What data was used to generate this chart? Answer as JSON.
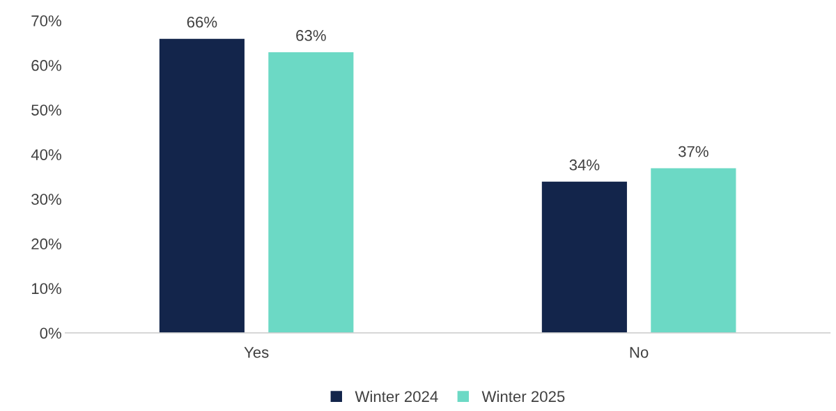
{
  "chart_data": {
    "type": "bar",
    "categories": [
      "Yes",
      "No"
    ],
    "series": [
      {
        "name": "Winter 2024",
        "color": "#13254b",
        "values": [
          66,
          34
        ],
        "value_labels": [
          "66%",
          "34%"
        ]
      },
      {
        "name": "Winter 2025",
        "color": "#6cd9c5",
        "values": [
          63,
          37
        ],
        "value_labels": [
          "63%",
          "37%"
        ]
      }
    ],
    "ylim": [
      0,
      70
    ],
    "yticks": [
      {
        "value": 0,
        "label": "0%"
      },
      {
        "value": 10,
        "label": "10%"
      },
      {
        "value": 20,
        "label": "20%"
      },
      {
        "value": 30,
        "label": "30%"
      },
      {
        "value": 40,
        "label": "40%"
      },
      {
        "value": 50,
        "label": "50%"
      },
      {
        "value": 60,
        "label": "60%"
      },
      {
        "value": 70,
        "label": "70%"
      }
    ],
    "grid": false,
    "legend": "bottom"
  }
}
